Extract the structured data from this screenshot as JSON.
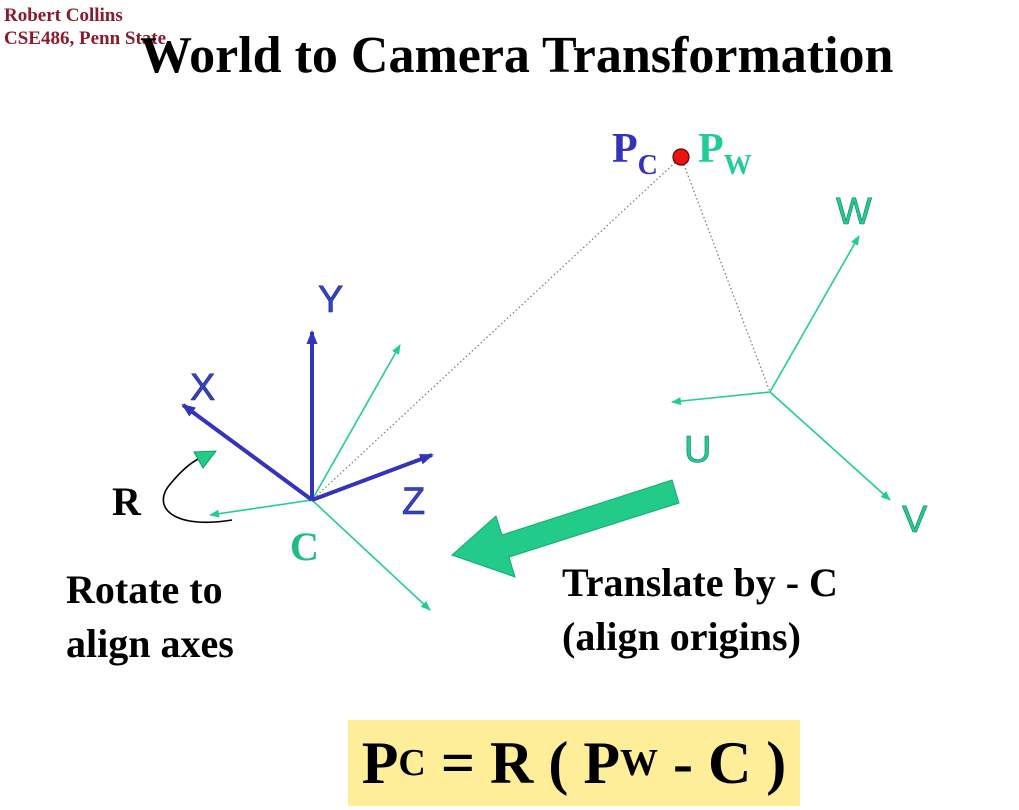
{
  "header": {
    "author_line1": "Robert Collins",
    "author_line2": "CSE486, Penn State",
    "title": "World to Camera Transformation"
  },
  "point": {
    "camera_label": "P",
    "camera_sub": "C",
    "world_label": "P",
    "world_sub": "W",
    "color": "#ee1111"
  },
  "camera_frame": {
    "axis_x": "X",
    "axis_y": "Y",
    "axis_z": "Z",
    "origin_label": "C",
    "axis_color": "#3333bb",
    "origin_color": "#22bb88"
  },
  "world_frame": {
    "axis_u": "U",
    "axis_v": "V",
    "axis_w": "W",
    "color": "#22cc99"
  },
  "rotation": {
    "label": "R",
    "caption_line1": "Rotate to",
    "caption_line2": "align axes"
  },
  "translation": {
    "caption_line1": "Translate by - C",
    "caption_line2": "(align origins)",
    "arrow_color": "#22cc88"
  },
  "formula": {
    "lhs": "P",
    "lhs_sub": "C",
    "eq": " = R ( ",
    "pw": "P",
    "pw_sub": "W",
    "rest": " - C )",
    "background": "#ffee99"
  }
}
